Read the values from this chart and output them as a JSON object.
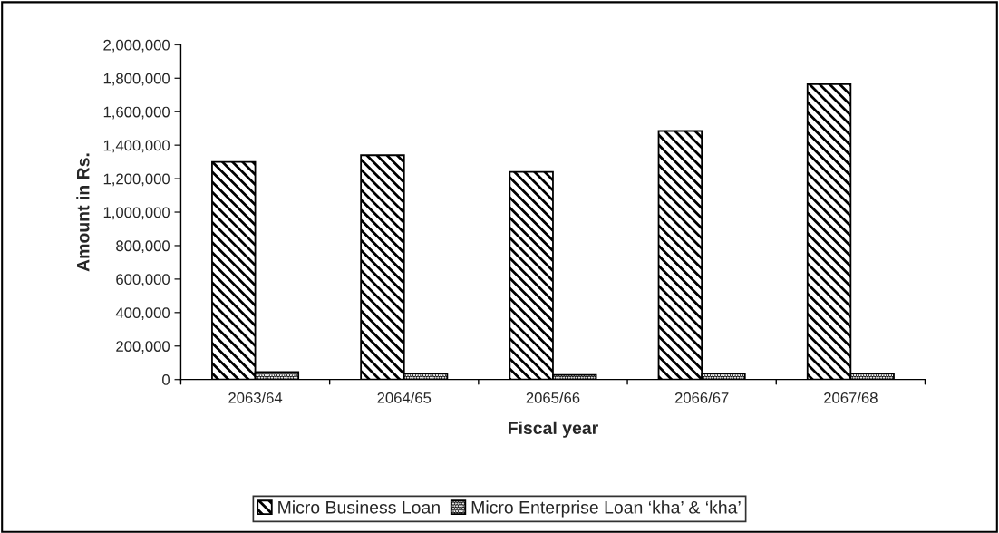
{
  "chart_data": {
    "type": "bar",
    "xlabel": "Fiscal year",
    "ylabel": "Amount in Rs.",
    "categories": [
      "2063/64",
      "2064/65",
      "2065/66",
      "2066/67",
      "2067/68"
    ],
    "series": [
      {
        "name": "Micro Business Loan",
        "color": "#000000",
        "values": [
          1300000,
          1340000,
          1240000,
          1485000,
          1765000
        ]
      },
      {
        "name": "Micro Enterprise Loan ‘kha’ & ‘kha’",
        "color": "#000000",
        "values": [
          45000,
          36000,
          27000,
          36000,
          36000
        ]
      }
    ],
    "ylim": [
      0,
      2000000
    ],
    "yticks": [
      {
        "value": 0,
        "label": "0"
      },
      {
        "value": 200000,
        "label": "200,000"
      },
      {
        "value": 400000,
        "label": "400,000"
      },
      {
        "value": 600000,
        "label": "600,000"
      },
      {
        "value": 800000,
        "label": "800,000"
      },
      {
        "value": 1000000,
        "label": "1,000,000"
      },
      {
        "value": 1200000,
        "label": "1,200,000"
      },
      {
        "value": 1400000,
        "label": "1,400,000"
      },
      {
        "value": 1600000,
        "label": "1,600,000"
      },
      {
        "value": 1800000,
        "label": "1,800,000"
      },
      {
        "value": 2000000,
        "label": "2,000,000"
      }
    ],
    "grid": false,
    "legend": "bottom"
  }
}
